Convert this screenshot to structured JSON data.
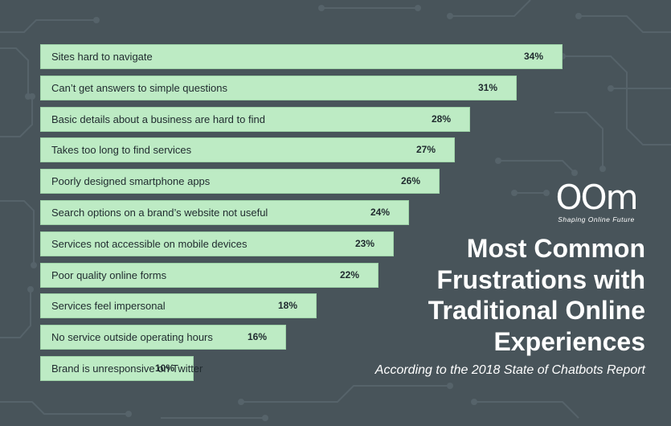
{
  "chart_data": {
    "type": "bar",
    "orientation": "horizontal",
    "categories": [
      "Sites hard to navigate",
      "Can’t get answers to simple questions",
      "Basic details about a business are hard to find",
      "Takes too long to find services",
      "Poorly designed smartphone apps",
      "Search options on a brand’s website not useful",
      "Services not accessible on mobile devices",
      "Poor quality online forms",
      "Services feel impersonal",
      "No service outside operating hours",
      "Brand is unresponsive on Twitter"
    ],
    "values": [
      34,
      31,
      28,
      27,
      26,
      24,
      23,
      22,
      18,
      16,
      10
    ],
    "value_labels": [
      "34%",
      "31%",
      "28%",
      "27%",
      "26%",
      "24%",
      "23%",
      "22%",
      "18%",
      "16%",
      "10%"
    ],
    "unit": "%",
    "title": "Most Common Frustrations with Traditional Online Experiences",
    "subtitle": "According to the 2018 State of Chatbots Report",
    "xlabel": "",
    "ylabel": "",
    "grid": false,
    "bar_color": "#bdebc4",
    "background_color": "#48545a"
  },
  "logo": {
    "mark": "OOm",
    "tagline": "Shaping Online Future"
  },
  "heading": {
    "title": "Most Common Frustrations with Traditional Online Experiences",
    "subtitle": "According to the 2018 State of Chatbots Report"
  }
}
